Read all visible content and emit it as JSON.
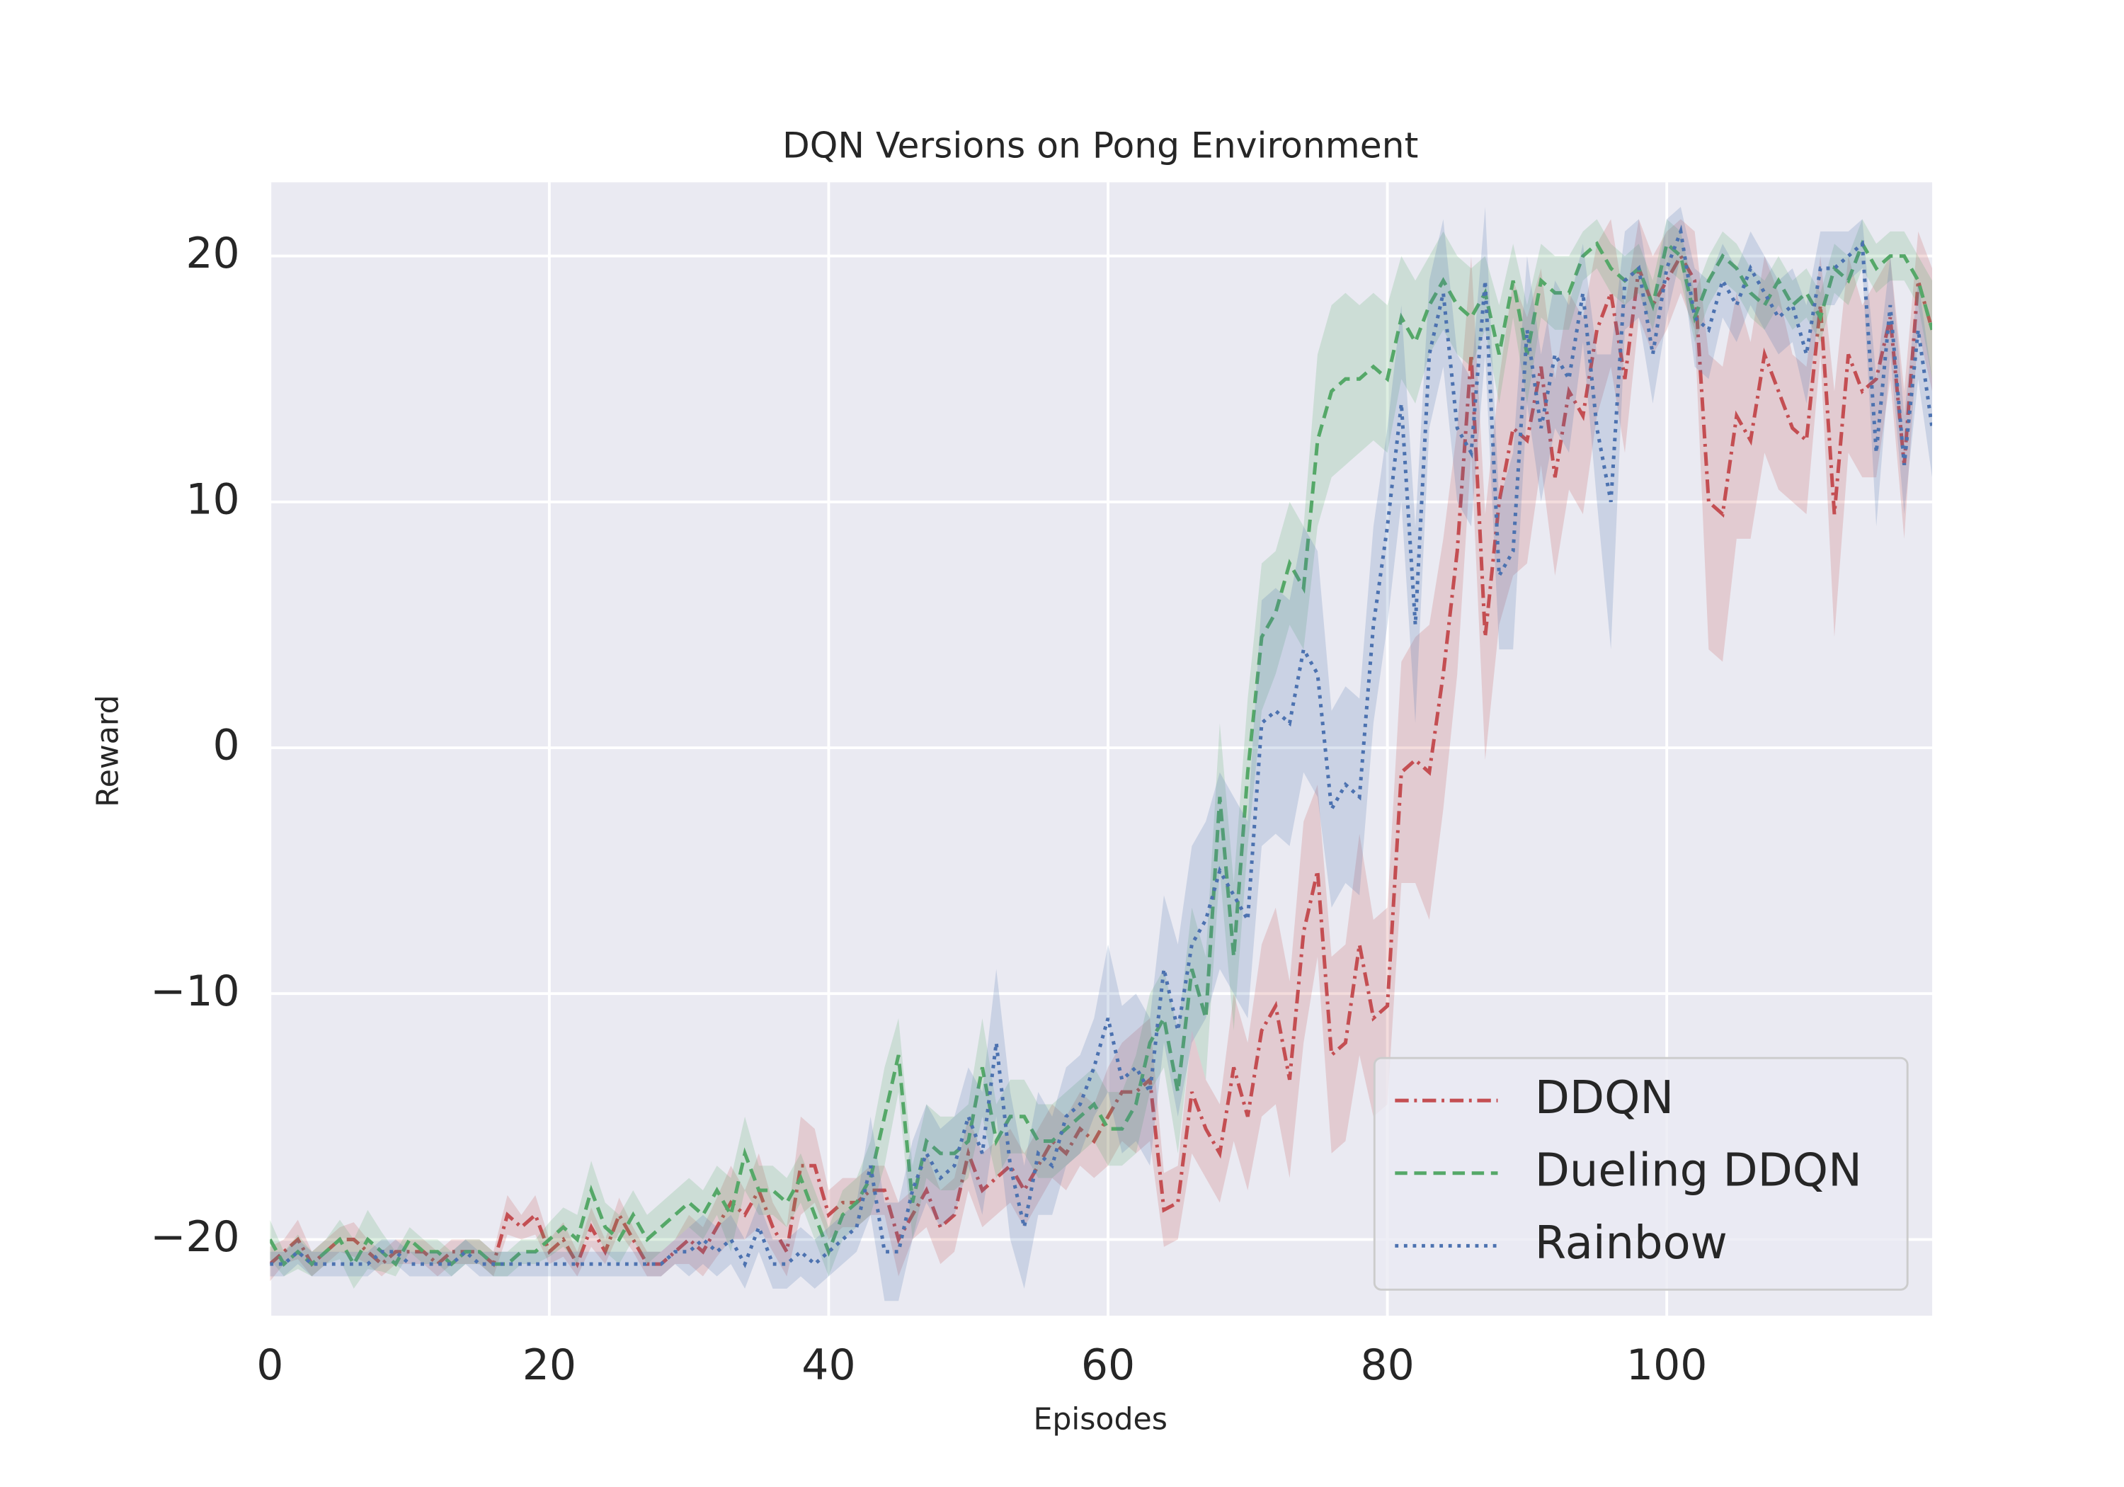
{
  "chart_data": {
    "type": "line",
    "title": "DQN Versions on Pong Environment",
    "x_label": "Episodes",
    "y_label": "Reward",
    "x": [
      0,
      1,
      2,
      3,
      4,
      5,
      6,
      7,
      8,
      9,
      10,
      11,
      12,
      13,
      14,
      15,
      16,
      17,
      18,
      19,
      20,
      21,
      22,
      23,
      24,
      25,
      26,
      27,
      28,
      29,
      30,
      31,
      32,
      33,
      34,
      35,
      36,
      37,
      38,
      39,
      40,
      41,
      42,
      43,
      44,
      45,
      46,
      47,
      48,
      49,
      50,
      51,
      52,
      53,
      54,
      55,
      56,
      57,
      58,
      59,
      60,
      61,
      62,
      63,
      64,
      65,
      66,
      67,
      68,
      69,
      70,
      71,
      72,
      73,
      74,
      75,
      76,
      77,
      78,
      79,
      80,
      81,
      82,
      83,
      84,
      85,
      86,
      87,
      88,
      89,
      90,
      91,
      92,
      93,
      94,
      95,
      96,
      97,
      98,
      99,
      100,
      101,
      102,
      103,
      104,
      105,
      106,
      107,
      108,
      109,
      110,
      111,
      112,
      113,
      114,
      115,
      116,
      117,
      118,
      119
    ],
    "series": [
      {
        "name": "DDQN",
        "color": "#c44e52",
        "dash": "dashdot",
        "values": [
          -21,
          -20.5,
          -20,
          -21,
          -20.5,
          -20,
          -20,
          -20.5,
          -21,
          -20.5,
          -20.5,
          -20.5,
          -21,
          -20.5,
          -20.5,
          -20.5,
          -21,
          -19,
          -19.5,
          -19,
          -20.5,
          -20,
          -21,
          -19.5,
          -20.5,
          -19,
          -20,
          -21,
          -21,
          -20.5,
          -20,
          -20.5,
          -19.5,
          -18.5,
          -19,
          -18,
          -19.5,
          -20.5,
          -17,
          -17,
          -19,
          -18.5,
          -18.5,
          -18,
          -18,
          -20,
          -19,
          -18,
          -19.5,
          -19,
          -16.5,
          -18,
          -17.5,
          -17,
          -18,
          -17,
          -16,
          -16.5,
          -15.5,
          -16,
          -15,
          -14,
          -14,
          -13.5,
          -18.8,
          -18.5,
          -14,
          -15.5,
          -16.5,
          -13,
          -15,
          -11.5,
          -10.5,
          -13.5,
          -7.5,
          -5,
          -12.5,
          -12,
          -8,
          -11,
          -10.5,
          -1,
          -0.5,
          -1,
          3,
          8,
          16,
          4.5,
          10,
          13,
          12.5,
          15.5,
          11,
          14.5,
          13.5,
          17,
          18.5,
          15,
          19.5,
          18,
          19,
          20,
          19,
          10,
          9.5,
          13.5,
          12.5,
          16,
          14.5,
          13,
          12.5,
          18,
          9.5,
          16,
          14.5,
          15,
          17.5,
          11.5,
          19,
          17
        ],
        "errors": [
          0.7,
          0.5,
          0.8,
          0.5,
          0.5,
          0.5,
          0.7,
          0.5,
          0.5,
          0.5,
          0.5,
          0.5,
          0.5,
          0.5,
          0.5,
          0.5,
          0.5,
          0.8,
          0.5,
          0.8,
          0.5,
          0.7,
          0.5,
          0.8,
          0.5,
          0.7,
          0.5,
          0.5,
          0.5,
          0.5,
          1,
          1,
          1.2,
          1.5,
          1,
          1.5,
          1,
          1,
          2,
          1.5,
          1,
          1,
          1,
          1,
          1,
          1.5,
          1,
          1.5,
          1.5,
          1.5,
          1.5,
          1.5,
          1.5,
          1.5,
          1.5,
          1.5,
          1.5,
          1.5,
          1.5,
          1.5,
          2,
          2,
          2.5,
          2.5,
          1.5,
          1.5,
          2.5,
          2,
          2,
          3,
          3,
          3.5,
          4,
          4,
          4.5,
          3.5,
          4,
          4,
          4.5,
          4,
          4,
          4.5,
          5,
          6,
          5.5,
          5,
          4,
          5,
          5,
          6,
          5,
          4,
          4,
          4,
          4,
          3.5,
          3,
          3,
          2,
          2,
          2,
          1.5,
          2,
          6,
          6,
          5,
          4,
          4,
          4,
          3,
          3,
          2,
          5,
          4,
          3.5,
          4,
          2.5,
          3,
          2,
          2.5
        ]
      },
      {
        "name": "Dueling DDQN",
        "color": "#55a868",
        "dash": "dashed",
        "values": [
          -20,
          -21,
          -20.5,
          -21,
          -20.5,
          -20,
          -21,
          -20,
          -20.5,
          -21,
          -20,
          -20.5,
          -20.5,
          -21,
          -20.5,
          -20.5,
          -21,
          -21,
          -20.5,
          -20.5,
          -20,
          -19.5,
          -20,
          -18,
          -19.5,
          -20,
          -19,
          -20,
          -19.5,
          -19,
          -18.5,
          -19,
          -18,
          -19,
          -16.5,
          -18,
          -18,
          -18.5,
          -17.5,
          -19,
          -20.5,
          -19,
          -18.5,
          -17.5,
          -15,
          -12.5,
          -18.5,
          -16,
          -16.5,
          -16.5,
          -16,
          -13,
          -16,
          -15,
          -15,
          -16,
          -16,
          -15.5,
          -15,
          -14.5,
          -15.5,
          -15.5,
          -14.5,
          -12,
          -11,
          -14,
          -9,
          -11,
          -2,
          -8.5,
          -1,
          4.5,
          5.5,
          7.5,
          6.5,
          12.5,
          14.5,
          15,
          15,
          15.5,
          15,
          17.5,
          16.5,
          18,
          19,
          18,
          17.5,
          18.5,
          16,
          19,
          16,
          19,
          18.5,
          18.5,
          20,
          20.5,
          19.5,
          19,
          19.5,
          18,
          20.5,
          20,
          17.5,
          19,
          20,
          19.5,
          18.5,
          18,
          19,
          18,
          18.5,
          17.5,
          19.5,
          19,
          20.5,
          19.5,
          20,
          20,
          19,
          17
        ],
        "errors": [
          0.8,
          0.5,
          0.7,
          0.5,
          0.5,
          0.8,
          1,
          1.2,
          0.8,
          0.5,
          0.5,
          0.5,
          0.5,
          0.5,
          0.5,
          0.5,
          0.5,
          0.5,
          0.5,
          0.5,
          0.7,
          0.8,
          1,
          1.2,
          1,
          1,
          1,
          1,
          1,
          1,
          1,
          1,
          1,
          1.5,
          1.5,
          1,
          1,
          1,
          1,
          1,
          1,
          1,
          1,
          1.5,
          2,
          1.5,
          1.5,
          1.5,
          1.5,
          1.5,
          1.5,
          2,
          1.5,
          1.5,
          1.5,
          1.5,
          1.5,
          1.5,
          1.5,
          1.5,
          1.5,
          1.5,
          2,
          2,
          2,
          2.5,
          2.5,
          2.5,
          3,
          3,
          3,
          3,
          2.5,
          2.5,
          2.5,
          3.5,
          3.5,
          3.5,
          3,
          3,
          3,
          2.5,
          2.5,
          2,
          2,
          2,
          2,
          1.5,
          2,
          1.5,
          2,
          1.5,
          1.5,
          1.5,
          1,
          1,
          1,
          1,
          1,
          1,
          1,
          1,
          1,
          1,
          1,
          1,
          1,
          1,
          1,
          1,
          1,
          1,
          1,
          1,
          1,
          1,
          1,
          1,
          1,
          2
        ]
      },
      {
        "name": "Rainbow",
        "color": "#4c72b0",
        "dash": "dotted",
        "values": [
          -21,
          -21,
          -20.5,
          -21,
          -21,
          -21,
          -21,
          -21,
          -20.5,
          -20.5,
          -21,
          -21,
          -21,
          -21,
          -20.5,
          -21,
          -21,
          -21,
          -21,
          -21,
          -21,
          -21,
          -21,
          -21,
          -21,
          -21,
          -21,
          -21,
          -21,
          -20.5,
          -20.5,
          -20,
          -20.5,
          -20,
          -21,
          -19.5,
          -21,
          -21,
          -20.5,
          -21,
          -20.5,
          -20,
          -19.5,
          -17,
          -20.5,
          -20.5,
          -18,
          -16.5,
          -17.5,
          -17,
          -15,
          -16.5,
          -12,
          -17,
          -19.5,
          -16.5,
          -17,
          -15,
          -14.5,
          -13,
          -11,
          -13.5,
          -13,
          -14,
          -9,
          -11.5,
          -8,
          -7,
          -5,
          -6,
          -7,
          1,
          1.5,
          1,
          4,
          3,
          -2.5,
          -1.5,
          -2,
          5,
          9,
          14,
          5,
          16,
          18.5,
          13,
          12,
          19,
          7,
          8,
          17,
          13,
          16,
          15,
          18.5,
          13,
          10,
          19,
          19.5,
          16,
          19.5,
          21,
          17.5,
          17,
          19,
          18,
          19.5,
          18.5,
          17.5,
          18,
          16,
          19.5,
          19.5,
          20,
          20.5,
          12,
          18,
          11.5,
          17,
          13
        ],
        "errors": [
          0.5,
          0.5,
          0.5,
          0.5,
          0.5,
          0.5,
          0.5,
          0.5,
          0.5,
          0.5,
          0.5,
          0.5,
          0.5,
          0.5,
          0.5,
          0.5,
          0.5,
          0.5,
          0.5,
          0.5,
          0.5,
          0.5,
          0.5,
          0.5,
          0.5,
          0.5,
          0.5,
          0.5,
          0.5,
          0.5,
          1,
          1,
          1,
          1,
          1,
          1,
          1,
          1,
          1,
          1,
          1,
          1,
          1,
          2,
          2,
          2,
          2,
          2,
          2,
          2,
          2,
          2.5,
          3,
          3,
          2.5,
          2.5,
          2,
          2,
          2,
          2,
          3,
          3,
          3,
          3,
          3,
          3.5,
          4,
          4,
          4,
          4,
          4,
          5,
          5,
          5,
          5,
          5,
          4,
          4,
          4,
          4,
          4,
          4,
          4,
          3,
          3,
          3,
          3,
          3,
          3,
          4,
          3,
          3,
          3,
          3,
          2,
          3,
          6,
          2,
          2,
          2,
          2,
          1,
          2,
          2,
          1.5,
          1.5,
          1.5,
          1.5,
          1.5,
          1.5,
          2,
          1.5,
          1.5,
          1,
          1,
          3,
          2,
          2,
          2,
          2
        ]
      }
    ],
    "xlim": [
      0,
      119
    ],
    "ylim": [
      -23.1,
      23
    ],
    "xticks": [
      0,
      20,
      40,
      60,
      80,
      100
    ],
    "yticks": [
      {
        "value": -20,
        "label": "−20"
      },
      {
        "value": -10,
        "label": "−10"
      },
      0,
      10,
      20
    ],
    "grid": true,
    "legend": "lower right"
  }
}
